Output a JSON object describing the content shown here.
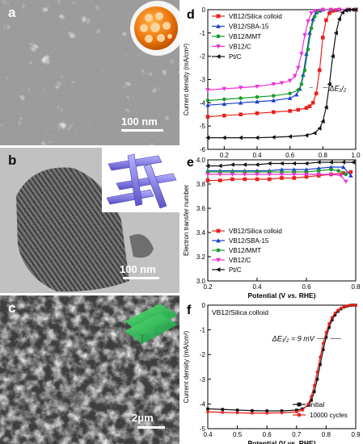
{
  "panels": {
    "a": {
      "label": "a",
      "scale_text": "100 nm"
    },
    "b": {
      "label": "b",
      "scale_text": "100 nm"
    },
    "c": {
      "label": "c",
      "scale_text": "2μm"
    }
  },
  "colors": {
    "silica": "#e8211c",
    "sba15": "#1d3fc9",
    "mmt": "#1c9b2b",
    "c": "#ee2fd8",
    "ptc": "#111111"
  },
  "chart_data": [
    {
      "id": "d",
      "panel_label": "d",
      "type": "line",
      "xlabel_parts": [
        "Potential (V ",
        "vs.",
        " RHE)"
      ],
      "ylabel": "Current density (mA/cm²)",
      "xlim": [
        0.1,
        1.0
      ],
      "ylim": [
        -6,
        0
      ],
      "xticks": [
        0.2,
        0.4,
        0.6,
        0.8,
        1.0
      ],
      "yticks": [
        -6,
        -5,
        -4,
        -3,
        -2,
        -1,
        0
      ],
      "legend_position": "top-left",
      "annotation": "ΔE₁/₂",
      "series": [
        {
          "name": "VB12/Silica colloid",
          "color_key": "silica",
          "marker": "square",
          "x": [
            0.1,
            0.2,
            0.3,
            0.4,
            0.5,
            0.6,
            0.65,
            0.7,
            0.72,
            0.74,
            0.76,
            0.78,
            0.8,
            0.82,
            0.84,
            0.86,
            0.88,
            0.9,
            0.95,
            1.0
          ],
          "y": [
            -4.6,
            -4.55,
            -4.5,
            -4.45,
            -4.4,
            -4.35,
            -4.3,
            -4.22,
            -4.15,
            -4.0,
            -3.6,
            -2.6,
            -1.2,
            -0.45,
            -0.15,
            -0.05,
            -0.02,
            0.0,
            0.0,
            0.0
          ]
        },
        {
          "name": "VB12/SBA-15",
          "color_key": "sba15",
          "marker": "triangle-up",
          "x": [
            0.1,
            0.2,
            0.3,
            0.4,
            0.5,
            0.6,
            0.64,
            0.66,
            0.68,
            0.7,
            0.72,
            0.74,
            0.76,
            0.78,
            0.8,
            0.85,
            0.9,
            0.95,
            1.0
          ],
          "y": [
            -4.1,
            -4.05,
            -4.0,
            -3.95,
            -3.9,
            -3.8,
            -3.65,
            -3.4,
            -2.8,
            -1.9,
            -1.0,
            -0.4,
            -0.12,
            -0.04,
            0.0,
            0.0,
            0.0,
            0.0,
            0.0
          ]
        },
        {
          "name": "VB12/MMT",
          "color_key": "mmt",
          "marker": "circle",
          "x": [
            0.1,
            0.2,
            0.3,
            0.4,
            0.5,
            0.6,
            0.65,
            0.67,
            0.69,
            0.71,
            0.73,
            0.75,
            0.77,
            0.8,
            0.85,
            0.9,
            0.95,
            1.0
          ],
          "y": [
            -3.9,
            -3.85,
            -3.8,
            -3.75,
            -3.7,
            -3.6,
            -3.45,
            -3.2,
            -2.6,
            -1.7,
            -0.8,
            -0.3,
            -0.08,
            0.0,
            0.0,
            0.0,
            0.0,
            0.0
          ]
        },
        {
          "name": "VB12/C",
          "color_key": "c",
          "marker": "triangle-down",
          "x": [
            0.1,
            0.2,
            0.3,
            0.4,
            0.5,
            0.55,
            0.6,
            0.63,
            0.65,
            0.67,
            0.69,
            0.71,
            0.73,
            0.75,
            0.8,
            0.85,
            0.9,
            0.95,
            1.0
          ],
          "y": [
            -3.45,
            -3.4,
            -3.35,
            -3.3,
            -3.2,
            -3.15,
            -3.05,
            -2.85,
            -2.5,
            -1.9,
            -1.1,
            -0.5,
            -0.15,
            -0.05,
            0.0,
            0.0,
            0.0,
            0.0,
            0.0
          ]
        },
        {
          "name": "Pt/C",
          "color_key": "ptc",
          "marker": "triangle-left",
          "x": [
            0.1,
            0.2,
            0.3,
            0.4,
            0.5,
            0.6,
            0.7,
            0.75,
            0.78,
            0.8,
            0.82,
            0.84,
            0.86,
            0.88,
            0.9,
            0.92,
            0.94,
            0.96,
            0.98,
            1.0
          ],
          "y": [
            -5.5,
            -5.5,
            -5.5,
            -5.5,
            -5.48,
            -5.45,
            -5.4,
            -5.3,
            -5.1,
            -4.8,
            -4.2,
            -3.2,
            -2.0,
            -1.0,
            -0.4,
            -0.12,
            -0.03,
            0.0,
            0.0,
            0.0
          ]
        }
      ]
    },
    {
      "id": "e",
      "panel_label": "e",
      "type": "line",
      "xlabel_parts": [
        "Potential (V ",
        "vs.",
        " RHE)"
      ],
      "ylabel": "Electron transfer number",
      "xlim": [
        0.2,
        0.8
      ],
      "ylim": [
        3.0,
        4.0
      ],
      "xticks": [
        0.2,
        0.4,
        0.6,
        0.8
      ],
      "yticks": [
        3.0,
        3.2,
        3.4,
        3.6,
        3.8,
        4.0
      ],
      "legend_position": "bottom-left",
      "series": [
        {
          "name": "VB12/Silica colloid",
          "color_key": "silica",
          "marker": "square",
          "x": [
            0.2,
            0.25,
            0.3,
            0.35,
            0.4,
            0.45,
            0.5,
            0.55,
            0.6,
            0.65,
            0.7,
            0.75,
            0.78
          ],
          "y": [
            3.83,
            3.83,
            3.84,
            3.84,
            3.84,
            3.84,
            3.85,
            3.85,
            3.86,
            3.87,
            3.88,
            3.89,
            3.9
          ]
        },
        {
          "name": "VB12/SBA-15",
          "color_key": "sba15",
          "marker": "triangle-up",
          "x": [
            0.2,
            0.25,
            0.3,
            0.35,
            0.4,
            0.45,
            0.5,
            0.55,
            0.6,
            0.65,
            0.7,
            0.75,
            0.78
          ],
          "y": [
            3.91,
            3.91,
            3.91,
            3.91,
            3.91,
            3.91,
            3.92,
            3.92,
            3.92,
            3.93,
            3.94,
            3.94,
            3.87
          ]
        },
        {
          "name": "VB12/MMT",
          "color_key": "mmt",
          "marker": "circle",
          "x": [
            0.2,
            0.25,
            0.3,
            0.35,
            0.4,
            0.45,
            0.5,
            0.55,
            0.6,
            0.65,
            0.7,
            0.73,
            0.76
          ],
          "y": [
            3.9,
            3.9,
            3.9,
            3.9,
            3.9,
            3.9,
            3.9,
            3.9,
            3.9,
            3.91,
            3.92,
            3.91,
            3.88
          ]
        },
        {
          "name": "VB12/C",
          "color_key": "c",
          "marker": "triangle-down",
          "x": [
            0.2,
            0.25,
            0.3,
            0.35,
            0.4,
            0.45,
            0.5,
            0.55,
            0.6,
            0.65,
            0.7,
            0.74,
            0.76
          ],
          "y": [
            3.88,
            3.88,
            3.88,
            3.88,
            3.88,
            3.88,
            3.88,
            3.88,
            3.88,
            3.88,
            3.88,
            3.87,
            3.82
          ]
        },
        {
          "name": "Pt/C",
          "color_key": "ptc",
          "marker": "triangle-left",
          "x": [
            0.2,
            0.25,
            0.3,
            0.35,
            0.4,
            0.45,
            0.5,
            0.55,
            0.6,
            0.65,
            0.7,
            0.75,
            0.79
          ],
          "y": [
            3.95,
            3.95,
            3.96,
            3.96,
            3.96,
            3.97,
            3.97,
            3.97,
            3.97,
            3.98,
            3.98,
            3.98,
            3.98
          ]
        }
      ]
    },
    {
      "id": "f",
      "panel_label": "f",
      "type": "line",
      "subtitle": "VB12/Silica colloid",
      "xlabel_parts": [
        "Potential (V ",
        "vs.",
        " RHE)"
      ],
      "ylabel": "Current density (mA/cm²)",
      "xlim": [
        0.4,
        0.9
      ],
      "ylim": [
        -5,
        0
      ],
      "xticks": [
        0.4,
        0.5,
        0.6,
        0.7,
        0.8,
        0.9
      ],
      "yticks": [
        -5,
        -4,
        -3,
        -2,
        -1,
        0
      ],
      "legend_position": "bottom-right",
      "annotation": "ΔE₁/₂ = 9  mV",
      "series": [
        {
          "name": "initial",
          "color_key": "ptc",
          "marker": "square",
          "x": [
            0.4,
            0.45,
            0.5,
            0.55,
            0.6,
            0.65,
            0.7,
            0.72,
            0.74,
            0.75,
            0.76,
            0.77,
            0.78,
            0.79,
            0.8,
            0.81,
            0.82,
            0.83,
            0.84,
            0.85,
            0.86,
            0.87,
            0.88,
            0.89,
            0.9
          ],
          "y": [
            -4.2,
            -4.22,
            -4.25,
            -4.27,
            -4.28,
            -4.28,
            -4.25,
            -4.2,
            -4.05,
            -3.85,
            -3.5,
            -3.0,
            -2.4,
            -1.8,
            -1.3,
            -0.9,
            -0.6,
            -0.4,
            -0.25,
            -0.15,
            -0.08,
            -0.04,
            -0.01,
            0.0,
            0.0
          ]
        },
        {
          "name": "10000 cycles",
          "color_key": "silica",
          "marker": "circle",
          "x": [
            0.4,
            0.45,
            0.5,
            0.55,
            0.6,
            0.65,
            0.7,
            0.72,
            0.74,
            0.75,
            0.76,
            0.77,
            0.78,
            0.79,
            0.8,
            0.81,
            0.82,
            0.83,
            0.84,
            0.85,
            0.86,
            0.87,
            0.88,
            0.89,
            0.9
          ],
          "y": [
            -4.32,
            -4.34,
            -4.36,
            -4.37,
            -4.37,
            -4.36,
            -4.32,
            -4.25,
            -4.0,
            -3.7,
            -3.25,
            -2.7,
            -2.1,
            -1.55,
            -1.1,
            -0.75,
            -0.5,
            -0.32,
            -0.2,
            -0.12,
            -0.06,
            -0.03,
            0.0,
            0.0,
            0.0
          ]
        }
      ]
    }
  ]
}
